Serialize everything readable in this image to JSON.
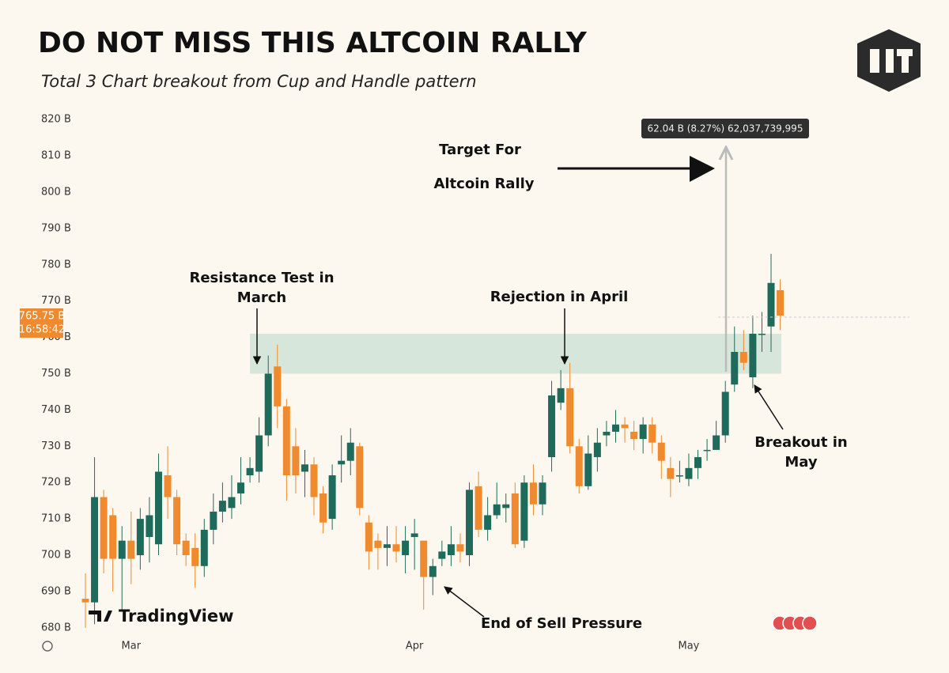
{
  "chart_data": {
    "type": "candlestick",
    "title": "DO NOT MISS THIS ALTCOIN RALLY",
    "subtitle": "Total 3 Chart breakout from Cup and Handle pattern",
    "categories": [
      null,
      null,
      null,
      null,
      null,
      "Mar",
      null,
      null,
      null,
      null,
      null,
      null,
      null,
      null,
      null,
      null,
      null,
      null,
      null,
      null,
      null,
      null,
      null,
      null,
      null,
      null,
      null,
      null,
      null,
      null,
      null,
      null,
      null,
      null,
      null,
      null,
      "Apr",
      null,
      null,
      null,
      null,
      null,
      null,
      null,
      null,
      null,
      null,
      null,
      null,
      null,
      null,
      null,
      null,
      null,
      null,
      null,
      null,
      null,
      null,
      null,
      null,
      null,
      null,
      null,
      null,
      null,
      "May",
      null,
      null,
      null,
      null,
      null,
      null,
      null,
      null,
      null,
      null
    ],
    "open": [
      688,
      687,
      716,
      711,
      699,
      704,
      700,
      705,
      703,
      722,
      716,
      704,
      702,
      697,
      707,
      712,
      713,
      717,
      722,
      723,
      733,
      752,
      741,
      730,
      723,
      725,
      717,
      710,
      725,
      726,
      730,
      709,
      704,
      702,
      703,
      700,
      705,
      704,
      694,
      699,
      700,
      703,
      700,
      719,
      707,
      711,
      713,
      717,
      704,
      720,
      714,
      727,
      742,
      746,
      730,
      719,
      727,
      733,
      734,
      736,
      734,
      732,
      736,
      731,
      724,
      722,
      721,
      724,
      729,
      729,
      733,
      747,
      756,
      749,
      761,
      763,
      773
    ],
    "high": [
      695,
      727,
      718,
      713,
      708,
      712,
      713,
      716,
      728,
      730,
      718,
      706,
      706,
      710,
      717,
      720,
      722,
      727,
      727,
      738,
      755,
      758,
      743,
      735,
      729,
      727,
      719,
      725,
      733,
      735,
      731,
      711,
      706,
      708,
      708,
      708,
      710,
      704,
      699,
      704,
      708,
      706,
      720,
      723,
      716,
      720,
      717,
      720,
      722,
      725,
      722,
      748,
      751,
      753,
      732,
      733,
      735,
      737,
      740,
      738,
      737,
      738,
      738,
      733,
      727,
      726,
      728,
      729,
      732,
      737,
      748,
      763,
      762,
      766,
      767,
      783,
      776
    ],
    "low": [
      680,
      681,
      695,
      690,
      685,
      692,
      696,
      698,
      700,
      710,
      700,
      697,
      691,
      694,
      703,
      709,
      710,
      714,
      720,
      720,
      730,
      735,
      715,
      717,
      716,
      711,
      706,
      707,
      720,
      722,
      711,
      696,
      696,
      697,
      698,
      695,
      696,
      685,
      689,
      697,
      697,
      698,
      697,
      705,
      704,
      710,
      709,
      702,
      702,
      711,
      711,
      723,
      740,
      728,
      717,
      718,
      723,
      730,
      731,
      731,
      729,
      728,
      728,
      721,
      716,
      720,
      719,
      721,
      726,
      729,
      731,
      745,
      751,
      746,
      756,
      756,
      762
    ],
    "close": [
      687,
      716,
      699,
      699,
      704,
      699,
      710,
      711,
      723,
      716,
      703,
      700,
      697,
      707,
      712,
      715,
      716,
      720,
      724,
      733,
      750,
      741,
      722,
      722,
      725,
      716,
      709,
      722,
      726,
      731,
      713,
      701,
      702,
      703,
      701,
      704,
      706,
      694,
      697,
      701,
      703,
      701,
      718,
      707,
      711,
      714,
      714,
      703,
      720,
      714,
      720,
      744,
      746,
      730,
      719,
      728,
      731,
      734,
      736,
      735,
      732,
      736,
      731,
      726,
      721,
      722,
      724,
      727,
      729,
      733,
      745,
      756,
      753,
      761,
      761,
      775,
      766
    ],
    "up_color": "#1f6b5b",
    "down_color": "#f08a2e",
    "ylim": [
      678,
      822
    ],
    "yticks": [
      {
        "value": 680,
        "label": "680 B"
      },
      {
        "value": 690,
        "label": "690 B"
      },
      {
        "value": 700,
        "label": "700 B"
      },
      {
        "value": 710,
        "label": "710 B"
      },
      {
        "value": 720,
        "label": "720 B"
      },
      {
        "value": 730,
        "label": "730 B"
      },
      {
        "value": 740,
        "label": "740 B"
      },
      {
        "value": 750,
        "label": "750 B"
      },
      {
        "value": 760,
        "label": "760 B"
      },
      {
        "value": 770,
        "label": "770 B"
      },
      {
        "value": 780,
        "label": "780 B"
      },
      {
        "value": 790,
        "label": "790 B"
      },
      {
        "value": 800,
        "label": "800 B"
      },
      {
        "value": 810,
        "label": "810 B"
      },
      {
        "value": 820,
        "label": "820 B"
      }
    ],
    "zone": [
      750,
      761
    ],
    "zone_color": "#cfe3d6",
    "price_tag": [
      "765.75 B",
      "16:58:42"
    ],
    "measure_label": "62.04 B (8.27%) 62,037,739,995",
    "annotations": {
      "target": [
        "Target For",
        "Altcoin Rally"
      ],
      "resistance": [
        "Resistance Test in",
        "March"
      ],
      "rejection": [
        "Rejection in April"
      ],
      "sell": [
        "End of Sell Pressure"
      ],
      "breakout": [
        "Breakout in",
        "May"
      ]
    },
    "watermark": "TradingView"
  }
}
